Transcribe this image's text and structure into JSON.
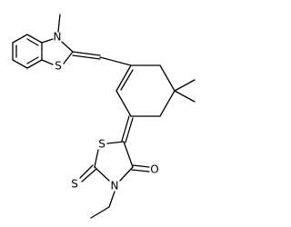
{
  "atoms": [
    {
      "label": "N"
    },
    {
      "label": "S"
    },
    {
      "label": "S"
    },
    {
      "label": "O"
    },
    {
      "label": "S"
    },
    {
      "label": "N"
    }
  ]
}
